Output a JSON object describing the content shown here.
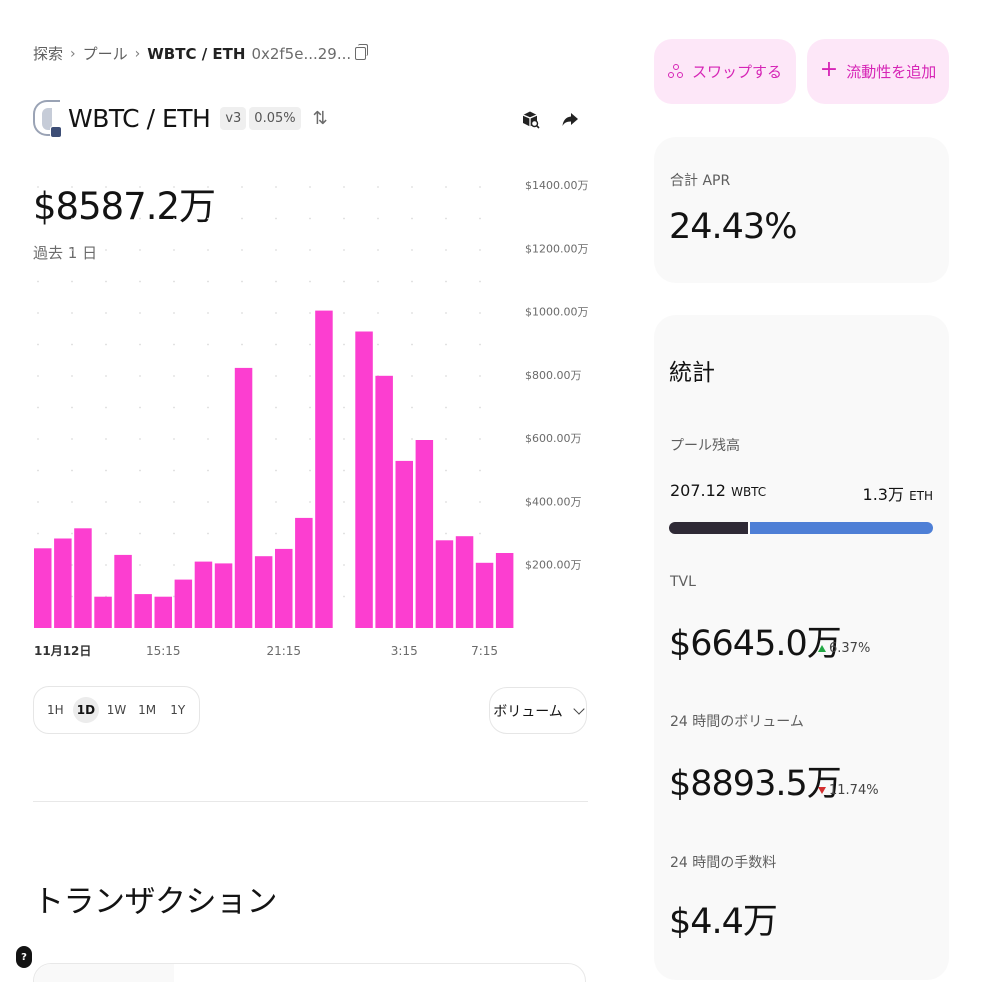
{
  "breadcrumb": {
    "items": [
      "探索",
      "プール"
    ],
    "current": "WBTC / ETH",
    "address": "0x2f5e...29..."
  },
  "pair": {
    "name": "WBTC / ETH",
    "version": "v3",
    "fee": "0.05%"
  },
  "icons": {
    "explorer": "block-explorer-icon",
    "share": "share-icon",
    "swap_arrows": "swap-arrows-icon"
  },
  "price": {
    "value": "$8587.2万",
    "period": "過去 1 日"
  },
  "chart_data": {
    "type": "bar",
    "color": "#fc3ed0",
    "y_ticks": [
      "$1400.00万",
      "$1200.00万",
      "$1000.00万",
      "$800.00万",
      "$600.00万",
      "$400.00万",
      "$200.00万"
    ],
    "y_tick_values": [
      1400,
      1200,
      1000,
      800,
      600,
      400,
      200
    ],
    "ylim": [
      0,
      1400
    ],
    "x_tick_labels": [
      "11月12日",
      "15:15",
      "21:15",
      "3:15",
      "7:15"
    ],
    "x_tick_indices": [
      0,
      6,
      12,
      18,
      22
    ],
    "values": [
      252,
      283,
      315,
      99,
      231,
      107,
      99,
      153,
      210,
      204,
      822,
      227,
      250,
      348,
      1003,
      null,
      937,
      797,
      528,
      594,
      277,
      290,
      206,
      237
    ]
  },
  "time_range": {
    "options": [
      "1H",
      "1D",
      "1W",
      "1M",
      "1Y"
    ],
    "active": "1D"
  },
  "metric_select": {
    "value": "ボリューム"
  },
  "transactions": {
    "title": "トランザクション"
  },
  "actions": {
    "swap_label": "スワップする",
    "add_liquidity_label": "流動性を追加"
  },
  "apr": {
    "label": "合計 APR",
    "value": "24.43%"
  },
  "stats": {
    "title": "統計",
    "pool_balance_label": "プール残高",
    "wbtc_amount": "207.12",
    "wbtc_symbol": "WBTC",
    "eth_amount": "1.3万",
    "eth_symbol": "ETH",
    "wbtc_share": 0.3,
    "tvl_label": "TVL",
    "tvl_value": "$6645.0万",
    "tvl_change": "6.37%",
    "volume_label": "24 時間のボリューム",
    "volume_value": "$8893.5万",
    "volume_change": "11.74%",
    "fees_label": "24 時間の手数料",
    "fees_value": "$4.4万"
  },
  "colors": {
    "accent": "#fc3ed0",
    "up": "#22a744",
    "down": "#d42f2f"
  },
  "help_label": "?"
}
